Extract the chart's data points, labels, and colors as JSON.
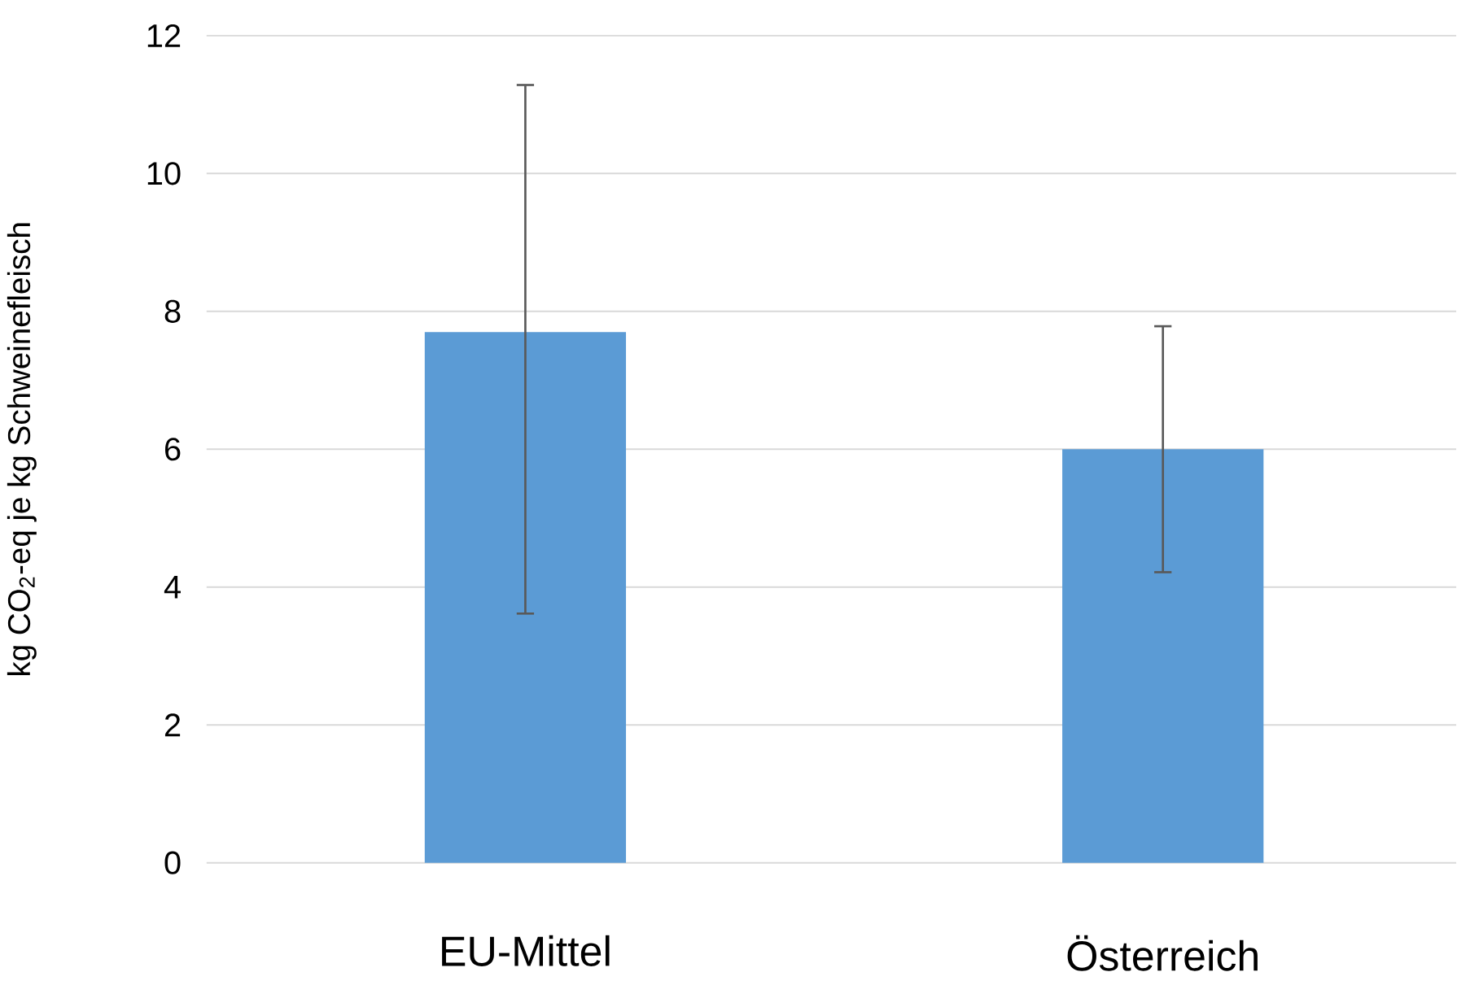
{
  "chart_data": {
    "type": "bar",
    "ylabel": "kg CO$_{2}$-eq je kg Schweinefleisch",
    "categories": [
      "EU-Mittel",
      "Österreich"
    ],
    "values": [
      7.7,
      6.0
    ],
    "errors": [
      [
        3.6,
        11.3
      ],
      [
        4.2,
        7.8
      ]
    ],
    "color": "#5b9bd5",
    "ylim": [
      0,
      12
    ],
    "yticks": [
      0,
      2,
      4,
      6,
      8,
      10,
      12
    ],
    "grid": "y"
  }
}
